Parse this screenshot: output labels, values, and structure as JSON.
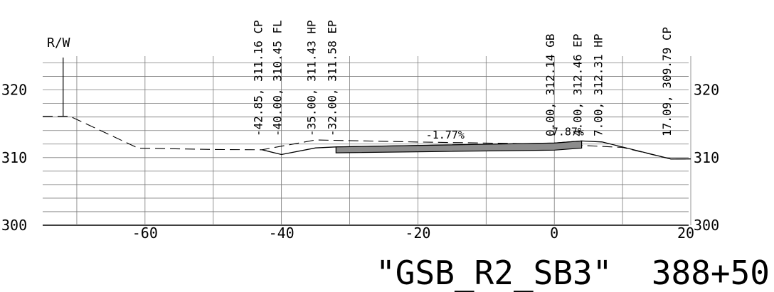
{
  "drawing": {
    "title": "\"GSB_R2_SB3\"  388+50",
    "row_label": "R/W"
  },
  "chart_data": {
    "type": "cross-section",
    "xlabel": "",
    "ylabel": "",
    "xlim": [
      -75,
      20
    ],
    "ylim": [
      300,
      325
    ],
    "x_ticks": [
      -60,
      -40,
      -20,
      0,
      20
    ],
    "y_ticks_left": [
      300,
      310,
      320
    ],
    "y_ticks_right": [
      300,
      310,
      320
    ],
    "x_grid": [
      -70,
      -60,
      -50,
      -40,
      -30,
      -20,
      -10,
      0,
      10,
      20
    ],
    "y_grid": [
      300,
      302,
      304,
      306,
      308,
      310,
      312,
      314,
      316,
      318,
      320,
      322,
      324
    ],
    "existing_ground": [
      [
        -75,
        316.1
      ],
      [
        -71,
        316.1
      ],
      [
        -61,
        311.4
      ],
      [
        -50,
        311.2
      ],
      [
        -42.85,
        311.16
      ],
      [
        -35,
        312.6
      ],
      [
        -20,
        312.3
      ],
      [
        0,
        312.0
      ],
      [
        10,
        311.5
      ],
      [
        17.09,
        309.79
      ],
      [
        20,
        309.8
      ]
    ],
    "proposed_grade": [
      [
        -42.85,
        311.16
      ],
      [
        -40.0,
        310.45
      ],
      [
        -35.0,
        311.43
      ],
      [
        -32.0,
        311.58
      ],
      [
        0.0,
        312.14
      ],
      [
        4.0,
        312.46
      ],
      [
        7.0,
        312.31
      ],
      [
        17.09,
        309.79
      ],
      [
        20,
        309.8
      ]
    ],
    "pavement_top": [
      [
        -32.0,
        311.58
      ],
      [
        0.0,
        312.14
      ],
      [
        4.0,
        312.46
      ]
    ],
    "pavement_bottom": [
      [
        -32.0,
        310.7
      ],
      [
        0.0,
        311.1
      ],
      [
        4.0,
        311.4
      ]
    ],
    "row_x": -72,
    "slopes": [
      {
        "label": "-1.77%",
        "x": -16,
        "y": 312.6
      },
      {
        "label": "7.87%",
        "x": 2,
        "y": 313.1
      }
    ],
    "point_labels": [
      {
        "text": "-42.85,  311.16 CP",
        "x": -42.85
      },
      {
        "text": "-40.00,  310.45 FL",
        "x": -40.0
      },
      {
        "text": "-35.00,  311.43 HP",
        "x": -35.0
      },
      {
        "text": "-32.00,  311.58 EP",
        "x": -32.0
      },
      {
        "text": "0.00,  312.14 GB",
        "x": 0.0
      },
      {
        "text": "4.00,  312.46 EP",
        "x": 4.0
      },
      {
        "text": "7.00,  312.31 HP",
        "x": 7.0
      },
      {
        "text": "17.09,  309.79 CP",
        "x": 17.09
      }
    ]
  }
}
